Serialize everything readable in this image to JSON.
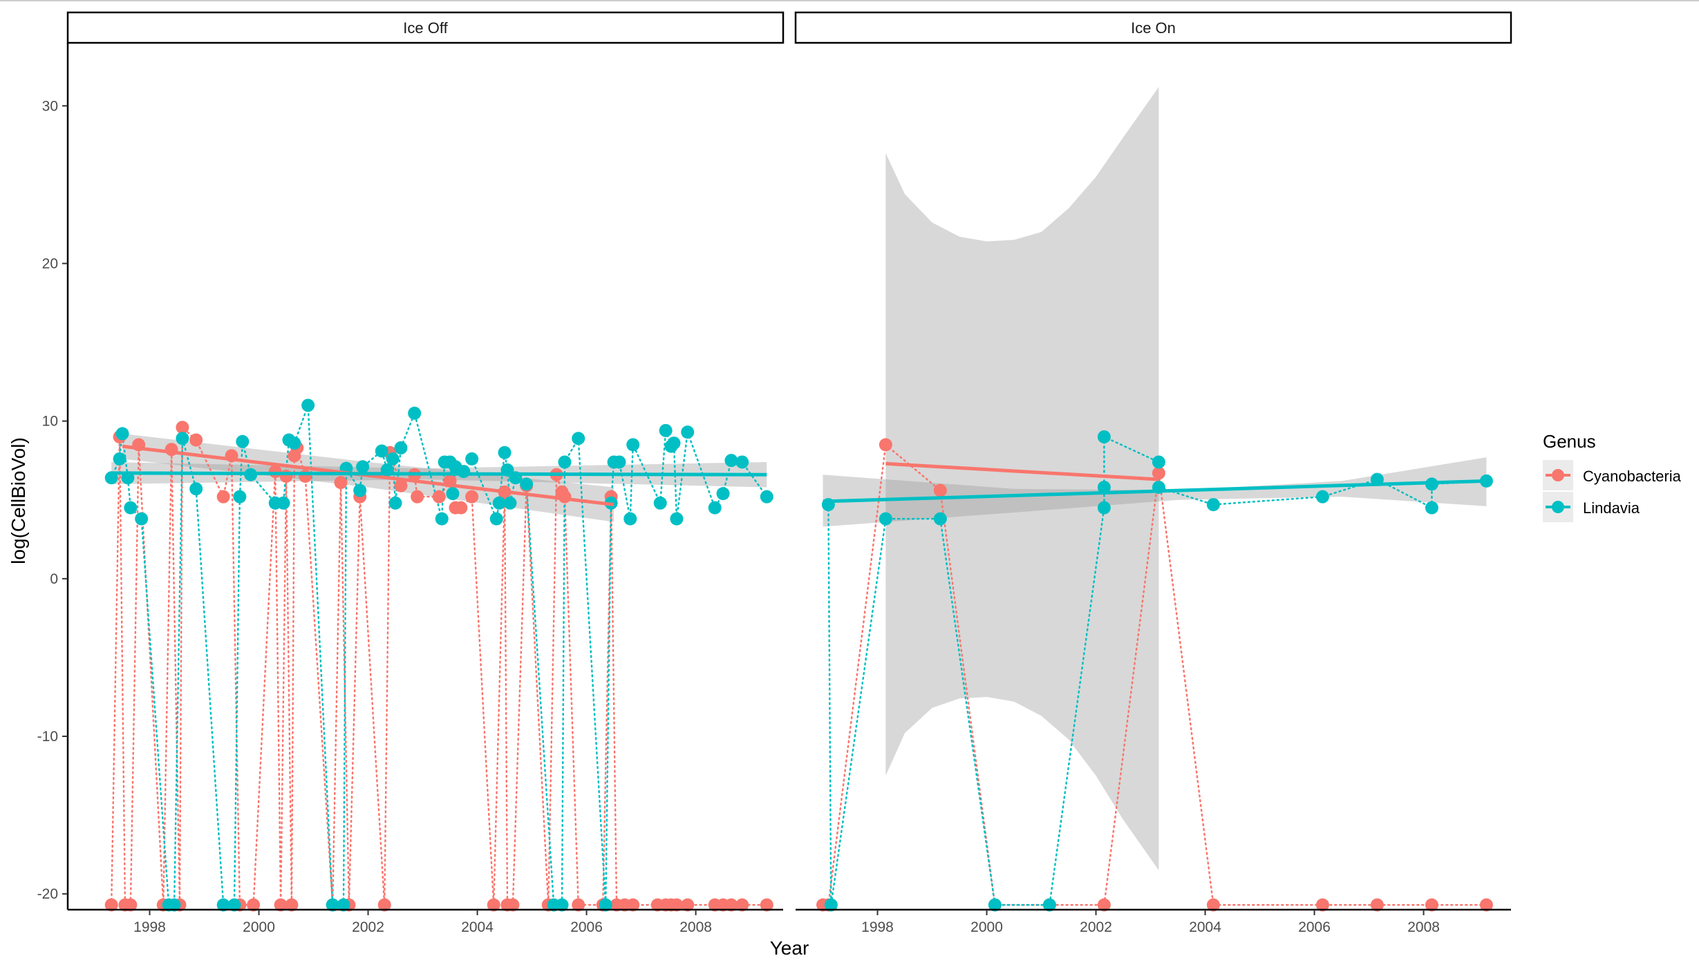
{
  "chart_data": {
    "type": "scatter",
    "panels": [
      {
        "strip": "Ice Off",
        "series": [
          {
            "name": "Cyanobacteria",
            "points": [
              [
                1997.3,
                -20.7
              ],
              [
                1997.45,
                9.0
              ],
              [
                1997.55,
                -20.7
              ],
              [
                1997.65,
                -20.7
              ],
              [
                1997.8,
                8.5
              ],
              [
                1998.25,
                -20.7
              ],
              [
                1998.4,
                8.2
              ],
              [
                1998.55,
                -20.7
              ],
              [
                1998.6,
                9.6
              ],
              [
                1998.85,
                8.8
              ],
              [
                1999.35,
                5.2
              ],
              [
                1999.5,
                7.8
              ],
              [
                1999.65,
                -20.7
              ],
              [
                1999.9,
                -20.7
              ],
              [
                2000.3,
                6.8
              ],
              [
                2000.4,
                -20.7
              ],
              [
                2000.5,
                6.5
              ],
              [
                2000.6,
                -20.7
              ],
              [
                2000.65,
                7.8
              ],
              [
                2000.7,
                8.3
              ],
              [
                2000.85,
                6.5
              ],
              [
                2001.35,
                -20.7
              ],
              [
                2001.5,
                6.1
              ],
              [
                2001.65,
                -20.7
              ],
              [
                2001.85,
                5.2
              ],
              [
                2002.3,
                -20.7
              ],
              [
                2002.4,
                8.0
              ],
              [
                2002.6,
                5.9
              ],
              [
                2002.85,
                6.6
              ],
              [
                2002.9,
                5.2
              ],
              [
                2003.3,
                5.2
              ],
              [
                2003.5,
                6.2
              ],
              [
                2003.6,
                4.5
              ],
              [
                2003.7,
                4.5
              ],
              [
                2003.9,
                5.2
              ],
              [
                2004.3,
                -20.7
              ],
              [
                2004.5,
                5.5
              ],
              [
                2004.55,
                -20.7
              ],
              [
                2004.65,
                -20.7
              ],
              [
                2004.9,
                5.9
              ],
              [
                2005.3,
                -20.7
              ],
              [
                2005.45,
                6.6
              ],
              [
                2005.55,
                5.5
              ],
              [
                2005.6,
                5.2
              ],
              [
                2005.85,
                -20.7
              ],
              [
                2006.3,
                -20.7
              ],
              [
                2006.45,
                5.2
              ],
              [
                2006.55,
                -20.7
              ],
              [
                2006.7,
                -20.7
              ],
              [
                2006.85,
                -20.7
              ],
              [
                2007.3,
                -20.7
              ],
              [
                2007.45,
                -20.7
              ],
              [
                2007.55,
                -20.7
              ],
              [
                2007.65,
                -20.7
              ],
              [
                2007.85,
                -20.7
              ],
              [
                2008.35,
                -20.7
              ],
              [
                2008.5,
                -20.7
              ],
              [
                2008.65,
                -20.7
              ],
              [
                2008.85,
                -20.7
              ],
              [
                2009.3,
                -20.7
              ]
            ],
            "trend": [
              [
                1997.5,
                8.4
              ],
              [
                2006.5,
                4.7
              ]
            ],
            "ribbon": [
              [
                1997.5,
                9.2,
                7.6
              ],
              [
                2002,
                7.4,
                5.8
              ],
              [
                2006.5,
                5.8,
                3.6
              ]
            ]
          },
          {
            "name": "Lindavia",
            "points": [
              [
                1997.3,
                6.4
              ],
              [
                1997.45,
                7.6
              ],
              [
                1997.5,
                9.2
              ],
              [
                1997.6,
                6.4
              ],
              [
                1997.65,
                4.5
              ],
              [
                1997.85,
                3.8
              ],
              [
                1998.35,
                -20.7
              ],
              [
                1998.45,
                -20.7
              ],
              [
                1998.6,
                8.9
              ],
              [
                1998.85,
                5.7
              ],
              [
                1999.35,
                -20.7
              ],
              [
                1999.55,
                -20.7
              ],
              [
                1999.65,
                5.2
              ],
              [
                1999.7,
                8.7
              ],
              [
                1999.85,
                6.6
              ],
              [
                2000.3,
                4.8
              ],
              [
                2000.45,
                4.8
              ],
              [
                2000.55,
                8.8
              ],
              [
                2000.65,
                8.6
              ],
              [
                2000.9,
                11.0
              ],
              [
                2001.35,
                -20.7
              ],
              [
                2001.55,
                -20.7
              ],
              [
                2001.6,
                7.0
              ],
              [
                2001.85,
                5.6
              ],
              [
                2001.9,
                7.1
              ],
              [
                2002.25,
                8.1
              ],
              [
                2002.35,
                6.9
              ],
              [
                2002.45,
                7.6
              ],
              [
                2002.5,
                4.8
              ],
              [
                2002.6,
                8.3
              ],
              [
                2002.85,
                10.5
              ],
              [
                2003.35,
                3.8
              ],
              [
                2003.4,
                7.4
              ],
              [
                2003.5,
                7.4
              ],
              [
                2003.55,
                5.4
              ],
              [
                2003.6,
                7.1
              ],
              [
                2003.75,
                6.8
              ],
              [
                2003.9,
                7.6
              ],
              [
                2004.35,
                3.8
              ],
              [
                2004.4,
                4.8
              ],
              [
                2004.5,
                8.0
              ],
              [
                2004.55,
                6.9
              ],
              [
                2004.6,
                4.8
              ],
              [
                2004.7,
                6.4
              ],
              [
                2004.9,
                6.0
              ],
              [
                2005.4,
                -20.7
              ],
              [
                2005.55,
                -20.7
              ],
              [
                2005.6,
                7.4
              ],
              [
                2005.85,
                8.9
              ],
              [
                2006.35,
                -20.7
              ],
              [
                2006.45,
                4.8
              ],
              [
                2006.5,
                7.4
              ],
              [
                2006.6,
                7.4
              ],
              [
                2006.8,
                3.8
              ],
              [
                2006.85,
                8.5
              ],
              [
                2007.35,
                4.8
              ],
              [
                2007.45,
                9.4
              ],
              [
                2007.55,
                8.4
              ],
              [
                2007.6,
                8.6
              ],
              [
                2007.65,
                3.8
              ],
              [
                2007.85,
                9.3
              ],
              [
                2008.35,
                4.5
              ],
              [
                2008.5,
                5.4
              ],
              [
                2008.65,
                7.5
              ],
              [
                2008.85,
                7.4
              ],
              [
                2009.3,
                5.2
              ]
            ],
            "trend": [
              [
                1997.3,
                6.7
              ],
              [
                2009.3,
                6.6
              ]
            ],
            "ribbon": [
              [
                1997.3,
                7.4,
                6.0
              ],
              [
                2003,
                7.0,
                6.3
              ],
              [
                2009.3,
                7.4,
                5.8
              ]
            ]
          }
        ]
      },
      {
        "strip": "Ice On",
        "series": [
          {
            "name": "Cyanobacteria",
            "points": [
              [
                1997.0,
                -20.7
              ],
              [
                1997.1,
                -20.7
              ],
              [
                1998.15,
                8.5
              ],
              [
                1999.15,
                5.6
              ],
              [
                2000.15,
                -20.7
              ],
              [
                2001.15,
                -20.7
              ],
              [
                2002.15,
                -20.7
              ],
              [
                2003.15,
                6.7
              ],
              [
                2004.15,
                -20.7
              ],
              [
                2006.15,
                -20.7
              ],
              [
                2007.15,
                -20.7
              ],
              [
                2008.15,
                -20.7
              ],
              [
                2009.15,
                -20.7
              ]
            ],
            "trend": [
              [
                1998.15,
                7.3
              ],
              [
                2003.15,
                6.3
              ]
            ],
            "ribbon": [
              [
                1998.15,
                27.0,
                -12.5
              ],
              [
                1998.5,
                24.4,
                -9.8
              ],
              [
                1999.0,
                22.6,
                -8.2
              ],
              [
                1999.5,
                21.7,
                -7.6
              ],
              [
                2000.0,
                21.4,
                -7.5
              ],
              [
                2000.5,
                21.5,
                -7.8
              ],
              [
                2001.0,
                22.0,
                -8.7
              ],
              [
                2001.5,
                23.5,
                -10.2
              ],
              [
                2002.0,
                25.5,
                -12.5
              ],
              [
                2002.5,
                28.0,
                -15.3
              ],
              [
                2003.15,
                31.2,
                -18.5
              ]
            ]
          },
          {
            "name": "Lindavia",
            "points": [
              [
                1997.1,
                4.7
              ],
              [
                1997.15,
                -20.7
              ],
              [
                1998.15,
                3.8
              ],
              [
                1999.15,
                3.8
              ],
              [
                2000.15,
                -20.7
              ],
              [
                2001.15,
                -20.7
              ],
              [
                2002.15,
                4.5
              ],
              [
                2002.15,
                5.8
              ],
              [
                2002.15,
                9.0
              ],
              [
                2003.15,
                7.4
              ],
              [
                2003.15,
                5.8
              ],
              [
                2004.15,
                4.7
              ],
              [
                2006.15,
                5.2
              ],
              [
                2007.15,
                6.3
              ],
              [
                2008.15,
                4.5
              ],
              [
                2008.15,
                6.0
              ],
              [
                2009.15,
                6.2
              ]
            ],
            "trend": [
              [
                1997.0,
                4.9
              ],
              [
                2009.15,
                6.2
              ]
            ],
            "ribbon": [
              [
                1997.0,
                6.6,
                3.3
              ],
              [
                2000.5,
                5.7,
                4.2
              ],
              [
                2003.5,
                5.6,
                5.0
              ],
              [
                2006.5,
                6.2,
                5.2
              ],
              [
                2009.15,
                7.7,
                4.6
              ]
            ]
          }
        ]
      }
    ],
    "xlabel": "Year",
    "ylabel": "log(CellBioVol)",
    "xlim": [
      1996.5,
      2009.6
    ],
    "ylim": [
      -21,
      34
    ],
    "x_ticks": [
      "1998",
      "2000",
      "2002",
      "2004",
      "2006",
      "2008"
    ],
    "x_tick_values": [
      1998,
      2000,
      2002,
      2004,
      2006,
      2008
    ],
    "y_ticks": [
      "-20",
      "-10",
      "0",
      "10",
      "20",
      "30"
    ],
    "y_tick_values": [
      -20,
      -10,
      0,
      10,
      20,
      30
    ],
    "legend": {
      "title": "Genus",
      "placement": "right",
      "entries": [
        "Cyanobacteria",
        "Lindavia"
      ]
    },
    "colors": {
      "Cyanobacteria": "#F8766D",
      "Lindavia": "#00BFC4",
      "ribbon": "#999999"
    },
    "grid": false
  }
}
